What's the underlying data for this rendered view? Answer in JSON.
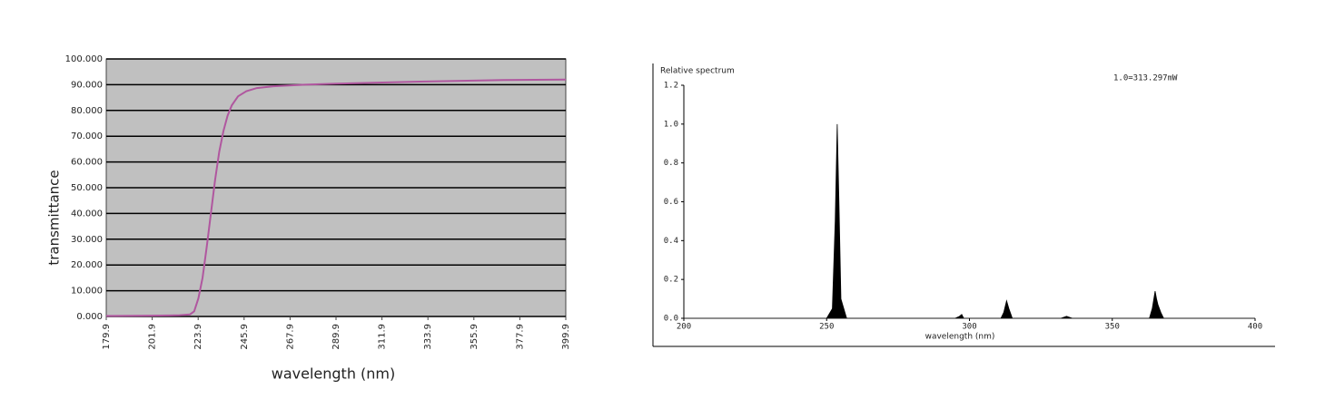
{
  "chart_data": [
    {
      "type": "line",
      "x_label": "wavelength (nm)",
      "y_label": "transmittance",
      "x": [
        179.9,
        200,
        210,
        215,
        220,
        222,
        224,
        226,
        228,
        230,
        232,
        234,
        236,
        238,
        240,
        243,
        247,
        252,
        260,
        275,
        290,
        310,
        330,
        350,
        370,
        399.9
      ],
      "values": [
        0.2,
        0.3,
        0.4,
        0.5,
        0.8,
        2,
        7,
        15,
        27,
        40,
        53,
        64,
        72,
        78,
        82,
        85.5,
        87.5,
        88.7,
        89.4,
        90,
        90.4,
        90.8,
        91.2,
        91.5,
        91.8,
        92
      ],
      "color": "#b0579f",
      "xlim": [
        179.9,
        399.9
      ],
      "xticks": [
        179.9,
        201.9,
        223.9,
        245.9,
        267.9,
        289.9,
        311.9,
        333.9,
        355.9,
        377.9,
        399.9
      ],
      "ylim": [
        0,
        100
      ],
      "yticks": [
        {
          "value": 0,
          "label": "0.000"
        },
        {
          "value": 10,
          "label": "10.000"
        },
        {
          "value": 20,
          "label": "20.000"
        },
        {
          "value": 30,
          "label": "30.000"
        },
        {
          "value": 40,
          "label": "40.000"
        },
        {
          "value": 50,
          "label": "50.000"
        },
        {
          "value": 60,
          "label": "60.000"
        },
        {
          "value": 70,
          "label": "70.000"
        },
        {
          "value": 80,
          "label": "80.000"
        },
        {
          "value": 90,
          "label": "90.000"
        },
        {
          "value": 100,
          "label": "100.000"
        }
      ],
      "grid": true
    },
    {
      "type": "area",
      "title": "Relative spectrum",
      "annotation": "1.0=313.297mW",
      "x_label": "wavelength (nm)",
      "x": [
        200,
        250,
        252,
        253,
        253.7,
        254.3,
        255,
        257,
        295,
        296.5,
        297.3,
        298,
        311,
        312,
        313,
        313.8,
        315,
        332,
        334,
        336,
        363,
        364,
        365,
        365.5,
        366,
        367,
        368,
        400
      ],
      "values": [
        0,
        0,
        0.05,
        0.5,
        1.0,
        0.6,
        0.1,
        0,
        0,
        0.01,
        0.02,
        0,
        0,
        0.03,
        0.09,
        0.05,
        0,
        0,
        0.01,
        0,
        0,
        0.05,
        0.14,
        0.1,
        0.07,
        0.03,
        0,
        0
      ],
      "color": "#000000",
      "xlim": [
        200,
        400
      ],
      "xticks": [
        200,
        250,
        300,
        350,
        400
      ],
      "ylim": [
        0,
        1.2
      ],
      "yticks": [
        {
          "value": 0,
          "label": "0.0"
        },
        0.2,
        0.4,
        0.6,
        0.8,
        {
          "value": 1,
          "label": "1.0"
        },
        1.2
      ],
      "grid": false
    }
  ]
}
